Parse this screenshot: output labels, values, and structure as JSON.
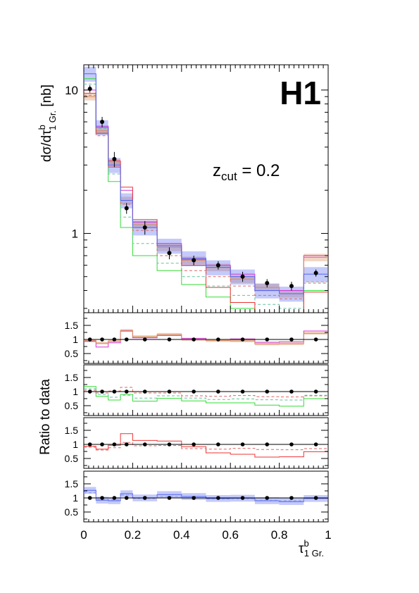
{
  "figure": {
    "logo": "H1",
    "annotation_main": "z",
    "annotation_sub": "cut",
    "annotation_value": " = 0.2",
    "ylabel_main": "dσ/dτ",
    "ylabel_sup": "b",
    "ylabel_sub": "1 Gr.",
    "ylabel_unit": " [nb]",
    "ratio_ylabel": "Ratio to data",
    "xlabel_main": "τ",
    "xlabel_sup": "b",
    "xlabel_sub": "1 Gr."
  },
  "colors": {
    "data": "#000000",
    "magenta": "#d633d6",
    "orange_band": "#d98a5a",
    "green": "#33dd33",
    "teal_dashed": "#66c0a0",
    "red": "#ee3333",
    "red_dashed": "#dd6666",
    "blue": "#5566ee",
    "blue_band": "#8899f0"
  },
  "chart_data": [
    {
      "type": "line",
      "yscale": "log",
      "ylim": [
        0.28,
        15
      ],
      "xlim": [
        0,
        1
      ],
      "bin_edges": [
        0,
        0.05,
        0.1,
        0.15,
        0.2,
        0.3,
        0.4,
        0.5,
        0.6,
        0.7,
        0.8,
        0.9,
        1.0
      ],
      "x_ticks": [
        "0",
        "0.2",
        "0.4",
        "0.6",
        "0.8",
        "1"
      ],
      "y_ticks": [
        "1",
        "10"
      ],
      "data": {
        "x": [
          0.025,
          0.075,
          0.125,
          0.175,
          0.25,
          0.35,
          0.45,
          0.55,
          0.65,
          0.75,
          0.85,
          0.95
        ],
        "y": [
          10.2,
          6.0,
          3.3,
          1.5,
          1.1,
          0.73,
          0.65,
          0.6,
          0.5,
          0.45,
          0.43,
          0.53
        ],
        "err": [
          0.6,
          0.5,
          0.4,
          0.13,
          0.12,
          0.07,
          0.05,
          0.04,
          0.04,
          0.03,
          0.03,
          0.03
        ]
      },
      "series": [
        {
          "color": "magenta",
          "dash": false,
          "values": [
            10.0,
            5.6,
            2.9,
            2.0,
            1.2,
            0.85,
            0.66,
            0.6,
            0.52,
            0.4,
            0.4,
            0.7
          ]
        },
        {
          "color": "orange_band",
          "dash": false,
          "band": 0.06,
          "values": [
            9.0,
            5.2,
            3.1,
            1.7,
            1.15,
            0.8,
            0.65,
            0.58,
            0.48,
            0.42,
            0.38,
            0.68
          ]
        },
        {
          "color": "green",
          "dash": false,
          "values": [
            12.0,
            5.0,
            2.3,
            1.1,
            0.7,
            0.55,
            0.44,
            0.36,
            0.3,
            0.23,
            0.2,
            0.4
          ]
        },
        {
          "color": "teal_dashed",
          "dash": true,
          "values": [
            11.0,
            5.4,
            2.6,
            1.3,
            0.85,
            0.62,
            0.5,
            0.43,
            0.37,
            0.32,
            0.3,
            0.46
          ]
        },
        {
          "color": "red",
          "dash": false,
          "values": [
            9.5,
            5.0,
            3.2,
            2.1,
            1.25,
            0.82,
            0.6,
            0.42,
            0.33,
            0.25,
            0.24,
            0.39
          ]
        },
        {
          "color": "red_dashed",
          "dash": true,
          "values": [
            9.2,
            4.8,
            2.9,
            1.6,
            1.05,
            0.7,
            0.55,
            0.5,
            0.43,
            0.37,
            0.35,
            0.45
          ]
        },
        {
          "color": "blue",
          "dash": false,
          "band": 0.12,
          "values": [
            13.0,
            5.5,
            3.0,
            1.7,
            1.1,
            0.82,
            0.67,
            0.58,
            0.5,
            0.4,
            0.38,
            0.52
          ]
        }
      ]
    },
    {
      "type": "line",
      "ylim": [
        0.15,
        1.95
      ],
      "y_ticks": [
        "0.5",
        "1",
        "1.5"
      ],
      "data_ratio": [
        1,
        1,
        1,
        1,
        1,
        1,
        1,
        1,
        1,
        1,
        1,
        1
      ],
      "series": [
        {
          "color": "magenta",
          "dash": false,
          "values": [
            0.93,
            0.73,
            0.88,
            1.3,
            1.06,
            1.14,
            1.04,
            1.0,
            1.02,
            0.9,
            0.92,
            1.3
          ]
        },
        {
          "color": "orange_band",
          "dash": false,
          "band": 0.05,
          "values": [
            0.96,
            0.87,
            0.94,
            1.32,
            1.1,
            1.18,
            1.0,
            0.96,
            0.95,
            0.84,
            0.85,
            1.22
          ]
        }
      ]
    },
    {
      "type": "line",
      "ylim": [
        0.15,
        1.95
      ],
      "y_ticks": [
        "0.5",
        "1",
        "1.5"
      ],
      "data_ratio": [
        1,
        1,
        1,
        1,
        1,
        1,
        1,
        1,
        1,
        1,
        1,
        1
      ],
      "series": [
        {
          "color": "green",
          "dash": false,
          "values": [
            1.18,
            0.83,
            0.7,
            0.9,
            0.66,
            0.76,
            0.67,
            0.6,
            0.6,
            0.52,
            0.48,
            0.75
          ]
        },
        {
          "color": "teal_dashed",
          "dash": true,
          "values": [
            1.1,
            0.9,
            0.8,
            0.87,
            0.77,
            0.85,
            0.77,
            0.72,
            0.74,
            0.71,
            0.7,
            0.87
          ]
        },
        {
          "color": "red_dashed",
          "dash": true,
          "values": [
            1.05,
            0.95,
            1.02,
            1.15,
            0.95,
            0.95,
            0.85,
            0.83,
            0.86,
            0.82,
            0.81,
            0.85
          ]
        }
      ]
    },
    {
      "type": "line",
      "ylim": [
        0.15,
        1.95
      ],
      "y_ticks": [
        "0.5",
        "1",
        "1.5"
      ],
      "data_ratio": [
        1,
        1,
        1,
        1,
        1,
        1,
        1,
        1,
        1,
        1,
        1,
        1
      ],
      "series": [
        {
          "color": "red",
          "dash": false,
          "values": [
            0.93,
            0.83,
            0.97,
            1.38,
            1.14,
            1.12,
            0.92,
            0.7,
            0.65,
            0.55,
            0.56,
            0.74
          ]
        },
        {
          "color": "red_dashed",
          "dash": true,
          "values": [
            0.9,
            0.8,
            0.88,
            1.07,
            0.95,
            0.96,
            0.85,
            0.83,
            0.86,
            0.82,
            0.81,
            0.85
          ]
        }
      ]
    },
    {
      "type": "line",
      "ylim": [
        0.15,
        1.95
      ],
      "y_ticks": [
        "0.5",
        "1",
        "1.5"
      ],
      "data_ratio": [
        1,
        1,
        1,
        1,
        1,
        1,
        1,
        1,
        1,
        1,
        1,
        1
      ],
      "series": [
        {
          "color": "blue",
          "dash": false,
          "band": 0.12,
          "values": [
            1.27,
            0.92,
            0.9,
            1.15,
            1.0,
            1.12,
            1.05,
            0.98,
            0.99,
            0.9,
            0.87,
            0.98
          ]
        },
        {
          "color": "blue_band",
          "dash": true,
          "values": [
            1.18,
            0.95,
            0.93,
            1.1,
            0.98,
            1.05,
            1.0,
            0.96,
            0.97,
            0.92,
            0.9,
            1.0
          ]
        }
      ]
    }
  ]
}
